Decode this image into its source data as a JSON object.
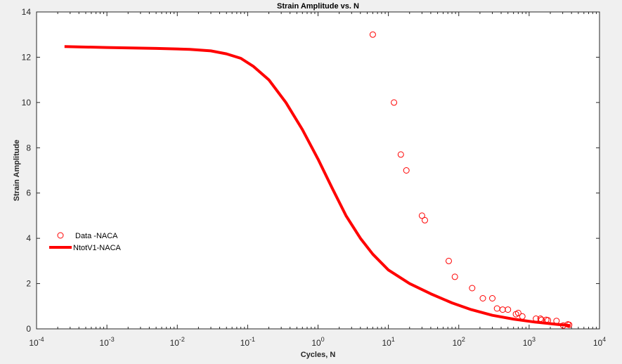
{
  "chart_data": {
    "type": "scatter",
    "title": "Strain Amplitude vs. N",
    "xlabel": "Cycles, N",
    "ylabel": "Strain Amplitude",
    "xscale": "log",
    "xlim": [
      0.0001,
      10000
    ],
    "ylim": [
      0,
      14
    ],
    "x_ticks": [
      {
        "value": 0.0001,
        "base": "10",
        "exp": "-4"
      },
      {
        "value": 0.001,
        "base": "10",
        "exp": "-3"
      },
      {
        "value": 0.01,
        "base": "10",
        "exp": "-2"
      },
      {
        "value": 0.1,
        "base": "10",
        "exp": "-1"
      },
      {
        "value": 1,
        "base": "10",
        "exp": "0"
      },
      {
        "value": 10,
        "base": "10",
        "exp": "1"
      },
      {
        "value": 100,
        "base": "10",
        "exp": "2"
      },
      {
        "value": 1000,
        "base": "10",
        "exp": "3"
      },
      {
        "value": 10000,
        "base": "10",
        "exp": "4"
      }
    ],
    "y_ticks": [
      0,
      2,
      4,
      6,
      8,
      10,
      12,
      14
    ],
    "grid": false,
    "legend_position": "middle-left",
    "series": [
      {
        "name": "Data -NACA",
        "kind": "markers",
        "marker": "circle",
        "color": "#ff0000",
        "points": [
          [
            6,
            13.0
          ],
          [
            12,
            10.0
          ],
          [
            15,
            7.7
          ],
          [
            18,
            7.0
          ],
          [
            30,
            5.0
          ],
          [
            33,
            4.8
          ],
          [
            72,
            3.0
          ],
          [
            88,
            2.3
          ],
          [
            155,
            1.8
          ],
          [
            220,
            1.35
          ],
          [
            300,
            1.35
          ],
          [
            350,
            0.9
          ],
          [
            420,
            0.85
          ],
          [
            500,
            0.85
          ],
          [
            650,
            0.65
          ],
          [
            700,
            0.7
          ],
          [
            800,
            0.55
          ],
          [
            1250,
            0.45
          ],
          [
            1450,
            0.45
          ],
          [
            1500,
            0.4
          ],
          [
            1750,
            0.4
          ],
          [
            1850,
            0.38
          ],
          [
            2450,
            0.35
          ],
          [
            3050,
            0.15
          ],
          [
            3550,
            0.2
          ],
          [
            3700,
            0.18
          ]
        ]
      },
      {
        "name": "NtotV1-NACA",
        "kind": "line",
        "color": "#ff0000",
        "points": [
          [
            0.00025,
            12.47
          ],
          [
            0.001,
            12.43
          ],
          [
            0.005,
            12.39
          ],
          [
            0.015,
            12.35
          ],
          [
            0.03,
            12.28
          ],
          [
            0.05,
            12.15
          ],
          [
            0.08,
            11.95
          ],
          [
            0.12,
            11.6
          ],
          [
            0.2,
            11.0
          ],
          [
            0.35,
            10.0
          ],
          [
            0.6,
            8.8
          ],
          [
            1,
            7.5
          ],
          [
            1.6,
            6.2
          ],
          [
            2.5,
            5.0
          ],
          [
            4,
            4.0
          ],
          [
            6,
            3.3
          ],
          [
            10,
            2.6
          ],
          [
            20,
            2.0
          ],
          [
            40,
            1.55
          ],
          [
            80,
            1.15
          ],
          [
            150,
            0.85
          ],
          [
            300,
            0.6
          ],
          [
            600,
            0.43
          ],
          [
            1200,
            0.3
          ],
          [
            2500,
            0.2
          ],
          [
            3800,
            0.15
          ]
        ]
      }
    ]
  }
}
